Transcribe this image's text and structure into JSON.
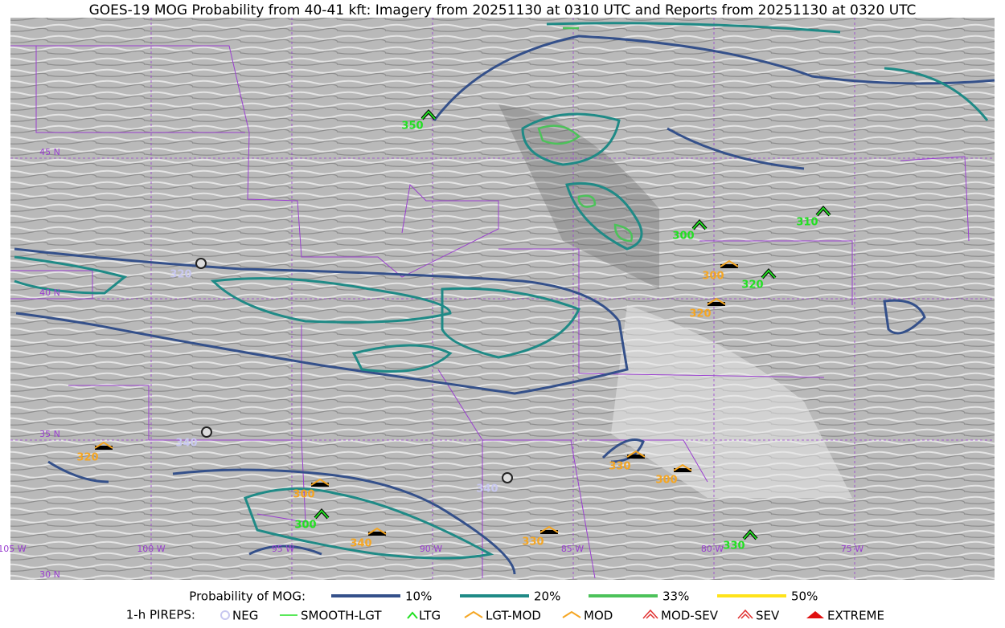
{
  "title": "GOES-19 MOG Probability from 40-41 kft: Imagery from 20251130 at 0310 UTC and Reports from 20251130 at 0320 UTC",
  "latitude_labels": [
    "45 N",
    "40 N",
    "35 N",
    "30 N"
  ],
  "longitude_labels": [
    "105 W",
    "100 W",
    "95 W",
    "90 W",
    "85 W",
    "80 W",
    "75 W"
  ],
  "reports": [
    "350",
    "300",
    "310",
    "320",
    "300",
    "320",
    "320",
    "330",
    "300",
    "300",
    "300",
    "340",
    "330",
    "330",
    "320",
    "340",
    "340"
  ],
  "legend": {
    "probability_title": "Probability of MOG:",
    "probability_levels": [
      "10%",
      "20%",
      "33%",
      "50%"
    ],
    "pirep_title": "1-h PIREPS:",
    "pirep_types": [
      "NEG",
      "SMOOTH-LGT",
      "LTG",
      "LGT-MOD",
      "MOD",
      "MOD-SEV",
      "SEV",
      "EXTREME"
    ]
  }
}
